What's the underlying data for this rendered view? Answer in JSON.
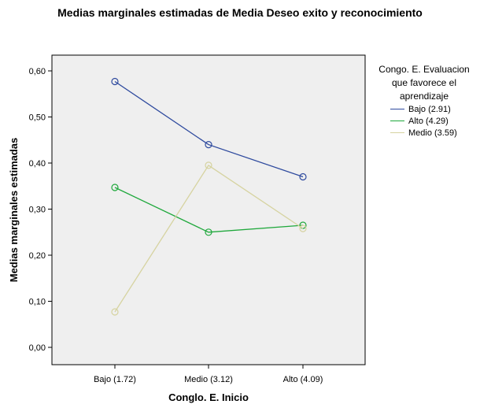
{
  "chart_data": {
    "type": "line",
    "title": "Medias marginales estimadas de Media Deseo exito y reconocimiento",
    "xlabel": "Conglo. E. Inicio",
    "ylabel": "Medias marginales estimadas",
    "categories": [
      "Bajo (1.72)",
      "Medio (3.12)",
      "Alto (4.09)"
    ],
    "ylim": [
      0,
      0.65
    ],
    "yticks": [
      0.0,
      0.1,
      0.2,
      0.3,
      0.4,
      0.5,
      0.6
    ],
    "ytick_labels": [
      "0,00",
      "0,10",
      "0,20",
      "0,30",
      "0,40",
      "0,50",
      "0,60"
    ],
    "grid": false,
    "legend": {
      "title": "Congo. E. Evaluacion que favorece el aprendizaje",
      "placement": "right"
    },
    "series": [
      {
        "name": "Bajo (2.91)",
        "color": "#2e4a9e",
        "values": [
          0.577,
          0.44,
          0.37
        ]
      },
      {
        "name": "Alto (4.29)",
        "color": "#1fa83c",
        "values": [
          0.347,
          0.25,
          0.265
        ]
      },
      {
        "name": "Medio (3.59)",
        "color": "#d6d3a0",
        "values": [
          0.077,
          0.395,
          0.258
        ]
      }
    ],
    "plot_background": "#efefef"
  }
}
